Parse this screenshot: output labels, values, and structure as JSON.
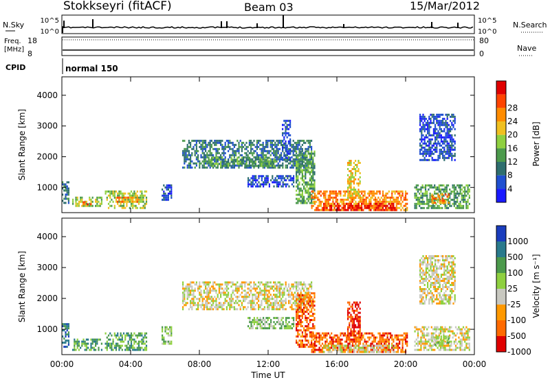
{
  "header": {
    "station": "Stokkseyri (fitACF)",
    "beam": "Beam 03",
    "date": "15/Mar/2012"
  },
  "nsky_panel": {
    "left_label": "N.Sky",
    "left_ticks": [
      "10^5",
      "10^0"
    ],
    "right_ticks": [
      "10^5",
      "10^0"
    ],
    "right_label": "N.Search"
  },
  "freq_panel": {
    "left_label_line1": "Freq.",
    "left_label_line2": "[MHz]",
    "left_ticks": [
      "18",
      "8"
    ],
    "right_ticks": [
      "80",
      "0"
    ],
    "right_label": "Nave"
  },
  "cpid_panel": {
    "label": "CPID",
    "program": "normal 150"
  },
  "colors": {
    "power": [
      "#1a1aff",
      "#1f4fd0",
      "#2e6e6e",
      "#4c9a4c",
      "#8fd040",
      "#f0c020",
      "#ff8c00",
      "#ff4400",
      "#e00000"
    ],
    "velocity": [
      "#1a3dbd",
      "#2a7a8c",
      "#4c9a4c",
      "#8fd040",
      "#c8c8c0",
      "#ff9900",
      "#ff6a00",
      "#e00000"
    ],
    "ground_scatter": "#c8c8c0"
  },
  "chart_data": [
    {
      "type": "heatmap",
      "panel": "power",
      "ylabel": "Slant Range [km]",
      "yticks": [
        1000,
        2000,
        3000,
        4000
      ],
      "ylim": [
        180,
        4600
      ],
      "xlim": [
        0,
        24
      ],
      "colorbar_label": "Power [dB]",
      "colorbar_ticks": [
        4,
        8,
        12,
        16,
        20,
        24,
        28
      ],
      "regions": [
        {
          "t": [
            0.0,
            0.5
          ],
          "r": [
            400,
            1200
          ],
          "level": 2
        },
        {
          "t": [
            0.6,
            2.4
          ],
          "r": [
            300,
            700
          ],
          "level": 4
        },
        {
          "t": [
            1.2,
            1.8
          ],
          "r": [
            350,
            550
          ],
          "level": 7
        },
        {
          "t": [
            2.5,
            5.0
          ],
          "r": [
            250,
            900
          ],
          "level": 4
        },
        {
          "t": [
            3.2,
            4.6
          ],
          "r": [
            450,
            700
          ],
          "level": 6
        },
        {
          "t": [
            5.8,
            6.5
          ],
          "r": [
            500,
            1100
          ],
          "level": 1
        },
        {
          "t": [
            7.0,
            14.6
          ],
          "r": [
            1600,
            2550
          ],
          "level": 2
        },
        {
          "t": [
            8.5,
            12.5
          ],
          "r": [
            1650,
            2000
          ],
          "level": 3
        },
        {
          "t": [
            10.8,
            13.6
          ],
          "r": [
            950,
            1400
          ],
          "level": 1
        },
        {
          "t": [
            12.8,
            13.4
          ],
          "r": [
            1800,
            3200
          ],
          "level": 1
        },
        {
          "t": [
            13.6,
            14.8
          ],
          "r": [
            400,
            2200
          ],
          "level": 3
        },
        {
          "t": [
            14.5,
            20.2
          ],
          "r": [
            220,
            900
          ],
          "level": 6
        },
        {
          "t": [
            15.2,
            19.6
          ],
          "r": [
            220,
            500
          ],
          "level": 8
        },
        {
          "t": [
            16.6,
            17.4
          ],
          "r": [
            600,
            1900
          ],
          "level": 5
        },
        {
          "t": [
            20.5,
            23.8
          ],
          "r": [
            250,
            1100
          ],
          "level": 3
        },
        {
          "t": [
            21.5,
            22.6
          ],
          "r": [
            450,
            800
          ],
          "level": 6
        },
        {
          "t": [
            20.8,
            23.0
          ],
          "r": [
            1800,
            3400
          ],
          "level": 1
        }
      ]
    },
    {
      "type": "heatmap",
      "panel": "velocity",
      "ylabel": "Slant Range [km]",
      "yticks": [
        1000,
        2000,
        3000,
        4000
      ],
      "ylim": [
        180,
        4600
      ],
      "xlim": [
        0,
        24
      ],
      "xlabel": "Time UT",
      "xticks": [
        "00:00",
        "04:00",
        "08:00",
        "12:00",
        "16:00",
        "20:00",
        "00:00"
      ],
      "colorbar_label": "Velocity [m s⁻¹]",
      "colorbar_ticks": [
        1000,
        500,
        100,
        25,
        -25,
        -100,
        -500,
        -1000
      ],
      "regions": [
        {
          "t": [
            0.0,
            0.5
          ],
          "r": [
            400,
            1200
          ],
          "level": 1
        },
        {
          "t": [
            0.6,
            2.4
          ],
          "r": [
            300,
            700
          ],
          "level": 2
        },
        {
          "t": [
            2.5,
            5.0
          ],
          "r": [
            250,
            900
          ],
          "level": 2
        },
        {
          "t": [
            5.8,
            6.5
          ],
          "r": [
            500,
            1100
          ],
          "level": 3
        },
        {
          "t": [
            7.0,
            14.6
          ],
          "r": [
            1600,
            2550
          ],
          "level": 4
        },
        {
          "t": [
            10.8,
            13.6
          ],
          "r": [
            950,
            1400
          ],
          "level": 3
        },
        {
          "t": [
            13.6,
            14.8
          ],
          "r": [
            400,
            2200
          ],
          "level": 6
        },
        {
          "t": [
            14.5,
            20.2
          ],
          "r": [
            220,
            900
          ],
          "level": 6
        },
        {
          "t": [
            15.2,
            19.6
          ],
          "r": [
            220,
            500
          ],
          "level": 4
        },
        {
          "t": [
            16.6,
            17.4
          ],
          "r": [
            600,
            1900
          ],
          "level": 7
        },
        {
          "t": [
            20.5,
            23.8
          ],
          "r": [
            250,
            1100
          ],
          "level": 4
        },
        {
          "t": [
            21.5,
            22.6
          ],
          "r": [
            450,
            800
          ],
          "level": 3
        },
        {
          "t": [
            20.8,
            23.0
          ],
          "r": [
            1800,
            3400
          ],
          "level": 4
        }
      ]
    }
  ]
}
